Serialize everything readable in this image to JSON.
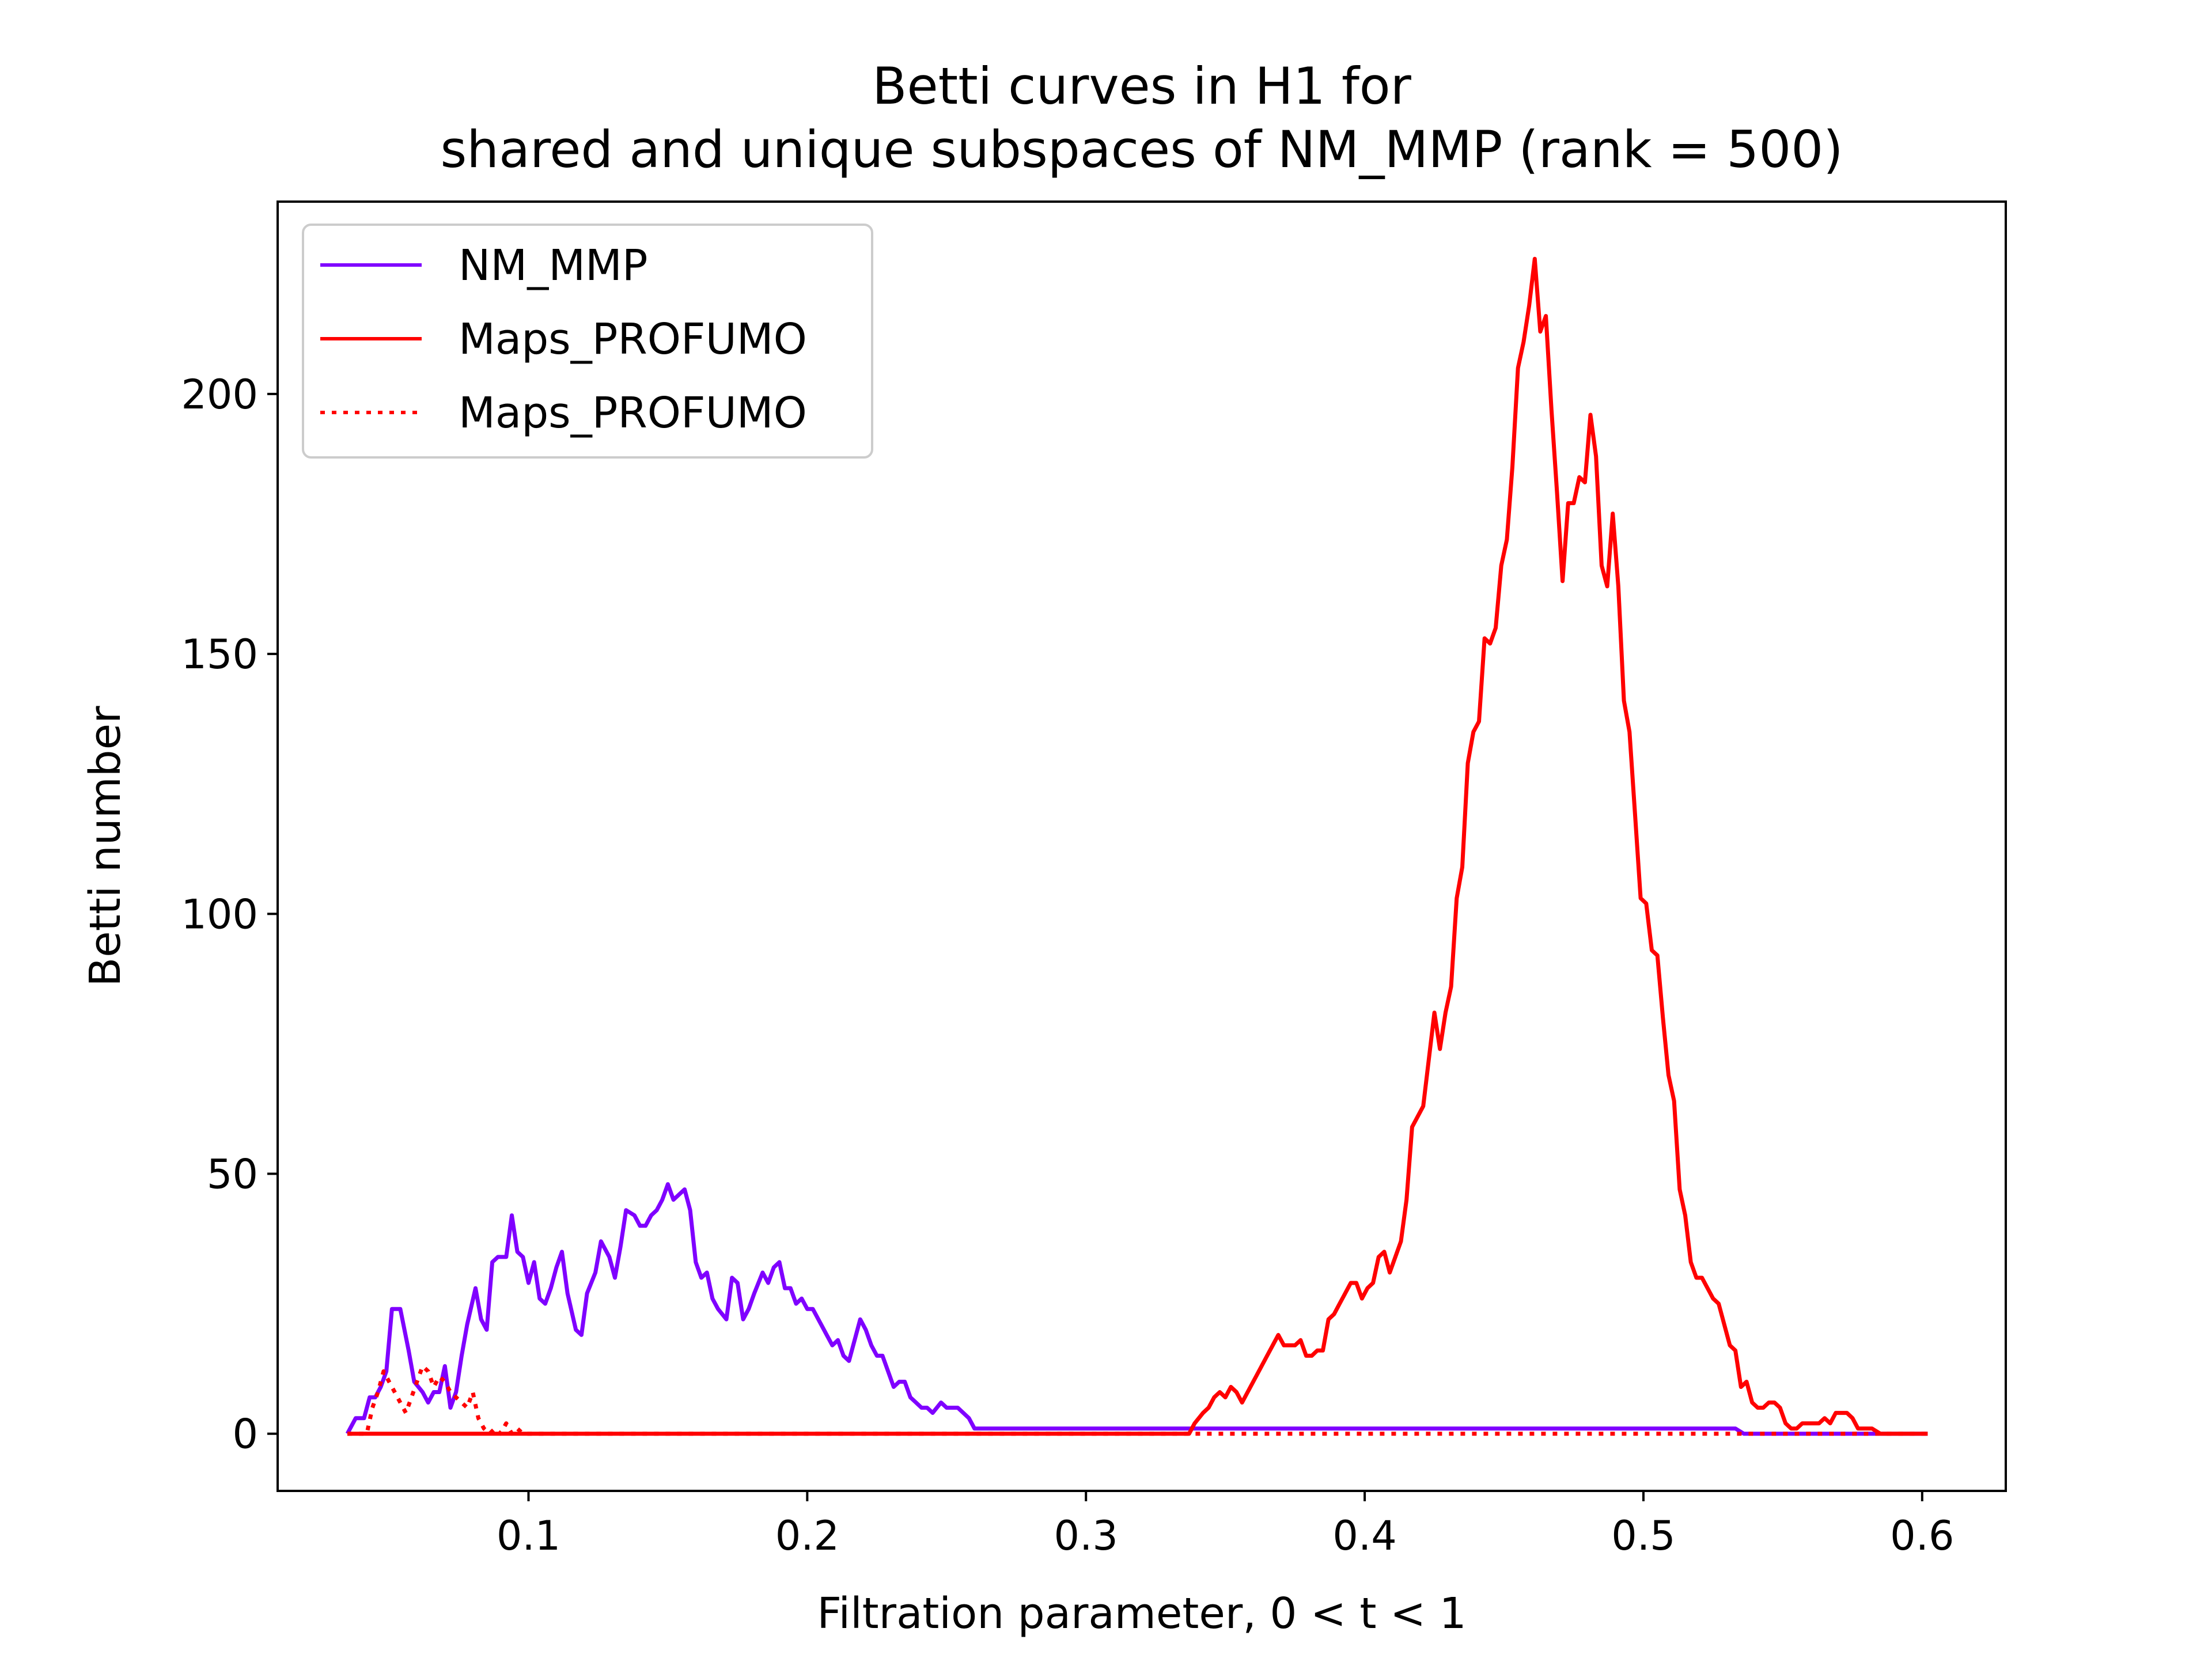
{
  "chart_data": {
    "type": "line",
    "title": "Betti curves in H1 for",
    "subtitle": "shared and unique subspaces of NM_MMP (rank = 500)",
    "xlabel": "Filtration parameter, 0 < t < 1",
    "ylabel": "Betti number",
    "xlim": [
      0.01,
      0.63
    ],
    "ylim": [
      -11,
      237
    ],
    "xticks": [
      0.1,
      0.2,
      0.3,
      0.4,
      0.5,
      0.6
    ],
    "xtick_labels": [
      "0.1",
      "0.2",
      "0.3",
      "0.4",
      "0.5",
      "0.6"
    ],
    "yticks": [
      0,
      50,
      100,
      150,
      200
    ],
    "ytick_labels": [
      "0",
      "50",
      "100",
      "150",
      "200"
    ],
    "grid": false,
    "legend_position": "upper left",
    "series": [
      {
        "name": "NM_MMP",
        "color": "#7f00ff",
        "style": "solid",
        "points": [
          [
            0.035,
            0
          ],
          [
            0.038,
            3
          ],
          [
            0.041,
            3
          ],
          [
            0.043,
            7
          ],
          [
            0.045,
            7
          ],
          [
            0.047,
            9
          ],
          [
            0.049,
            12
          ],
          [
            0.051,
            24
          ],
          [
            0.054,
            24
          ],
          [
            0.057,
            16
          ],
          [
            0.059,
            10
          ],
          [
            0.062,
            8
          ],
          [
            0.064,
            6
          ],
          [
            0.066,
            8
          ],
          [
            0.068,
            8
          ],
          [
            0.07,
            13
          ],
          [
            0.072,
            5
          ],
          [
            0.074,
            8
          ],
          [
            0.076,
            15
          ],
          [
            0.078,
            21
          ],
          [
            0.081,
            28
          ],
          [
            0.083,
            22
          ],
          [
            0.085,
            20
          ],
          [
            0.087,
            33
          ],
          [
            0.089,
            34
          ],
          [
            0.092,
            34
          ],
          [
            0.094,
            42
          ],
          [
            0.096,
            35
          ],
          [
            0.098,
            34
          ],
          [
            0.1,
            29
          ],
          [
            0.102,
            33
          ],
          [
            0.104,
            26
          ],
          [
            0.106,
            25
          ],
          [
            0.108,
            28
          ],
          [
            0.11,
            32
          ],
          [
            0.112,
            35
          ],
          [
            0.114,
            27
          ],
          [
            0.117,
            20
          ],
          [
            0.119,
            19
          ],
          [
            0.121,
            27
          ],
          [
            0.124,
            31
          ],
          [
            0.126,
            37
          ],
          [
            0.129,
            34
          ],
          [
            0.131,
            30
          ],
          [
            0.133,
            36
          ],
          [
            0.135,
            43
          ],
          [
            0.138,
            42
          ],
          [
            0.14,
            40
          ],
          [
            0.142,
            40
          ],
          [
            0.144,
            42
          ],
          [
            0.146,
            43
          ],
          [
            0.148,
            45
          ],
          [
            0.15,
            48
          ],
          [
            0.152,
            45
          ],
          [
            0.154,
            46
          ],
          [
            0.156,
            47
          ],
          [
            0.158,
            43
          ],
          [
            0.16,
            33
          ],
          [
            0.162,
            30
          ],
          [
            0.164,
            31
          ],
          [
            0.166,
            26
          ],
          [
            0.168,
            24
          ],
          [
            0.171,
            22
          ],
          [
            0.173,
            30
          ],
          [
            0.175,
            29
          ],
          [
            0.177,
            22
          ],
          [
            0.179,
            24
          ],
          [
            0.181,
            27
          ],
          [
            0.184,
            31
          ],
          [
            0.186,
            29
          ],
          [
            0.188,
            32
          ],
          [
            0.19,
            33
          ],
          [
            0.192,
            28
          ],
          [
            0.194,
            28
          ],
          [
            0.196,
            25
          ],
          [
            0.198,
            26
          ],
          [
            0.2,
            24
          ],
          [
            0.202,
            24
          ],
          [
            0.205,
            21
          ],
          [
            0.207,
            19
          ],
          [
            0.209,
            17
          ],
          [
            0.211,
            18
          ],
          [
            0.213,
            15
          ],
          [
            0.215,
            14
          ],
          [
            0.217,
            18
          ],
          [
            0.219,
            22
          ],
          [
            0.221,
            20
          ],
          [
            0.223,
            17
          ],
          [
            0.225,
            15
          ],
          [
            0.227,
            15
          ],
          [
            0.229,
            12
          ],
          [
            0.231,
            9
          ],
          [
            0.233,
            10
          ],
          [
            0.235,
            10
          ],
          [
            0.237,
            7
          ],
          [
            0.239,
            6
          ],
          [
            0.241,
            5
          ],
          [
            0.243,
            5
          ],
          [
            0.245,
            4
          ],
          [
            0.248,
            6
          ],
          [
            0.25,
            5
          ],
          [
            0.252,
            5
          ],
          [
            0.254,
            5
          ],
          [
            0.256,
            4
          ],
          [
            0.258,
            3
          ],
          [
            0.26,
            1
          ],
          [
            0.27,
            1
          ],
          [
            0.3,
            1
          ],
          [
            0.4,
            1
          ],
          [
            0.5,
            1
          ],
          [
            0.533,
            1
          ],
          [
            0.536,
            0
          ],
          [
            0.602,
            0
          ]
        ]
      },
      {
        "name": "Maps_PROFUMO",
        "color": "#ff0000",
        "style": "solid",
        "points": [
          [
            0.035,
            0
          ],
          [
            0.1,
            0
          ],
          [
            0.2,
            0
          ],
          [
            0.3,
            0
          ],
          [
            0.337,
            0
          ],
          [
            0.339,
            2
          ],
          [
            0.342,
            4
          ],
          [
            0.344,
            5
          ],
          [
            0.346,
            7
          ],
          [
            0.348,
            8
          ],
          [
            0.35,
            7
          ],
          [
            0.352,
            9
          ],
          [
            0.354,
            8
          ],
          [
            0.356,
            6
          ],
          [
            0.358,
            8
          ],
          [
            0.361,
            11
          ],
          [
            0.363,
            13
          ],
          [
            0.365,
            15
          ],
          [
            0.367,
            17
          ],
          [
            0.369,
            19
          ],
          [
            0.371,
            17
          ],
          [
            0.373,
            17
          ],
          [
            0.375,
            17
          ],
          [
            0.377,
            18
          ],
          [
            0.379,
            15
          ],
          [
            0.381,
            15
          ],
          [
            0.383,
            16
          ],
          [
            0.385,
            16
          ],
          [
            0.387,
            22
          ],
          [
            0.389,
            23
          ],
          [
            0.391,
            25
          ],
          [
            0.393,
            27
          ],
          [
            0.395,
            29
          ],
          [
            0.397,
            29
          ],
          [
            0.399,
            26
          ],
          [
            0.401,
            28
          ],
          [
            0.403,
            29
          ],
          [
            0.405,
            34
          ],
          [
            0.407,
            35
          ],
          [
            0.409,
            31
          ],
          [
            0.411,
            34
          ],
          [
            0.413,
            37
          ],
          [
            0.415,
            45
          ],
          [
            0.417,
            59
          ],
          [
            0.419,
            61
          ],
          [
            0.421,
            63
          ],
          [
            0.423,
            72
          ],
          [
            0.425,
            81
          ],
          [
            0.427,
            74
          ],
          [
            0.429,
            81
          ],
          [
            0.431,
            86
          ],
          [
            0.433,
            103
          ],
          [
            0.435,
            109
          ],
          [
            0.437,
            129
          ],
          [
            0.439,
            135
          ],
          [
            0.441,
            137
          ],
          [
            0.443,
            153
          ],
          [
            0.445,
            152
          ],
          [
            0.447,
            155
          ],
          [
            0.449,
            167
          ],
          [
            0.451,
            172
          ],
          [
            0.453,
            186
          ],
          [
            0.455,
            205
          ],
          [
            0.457,
            210
          ],
          [
            0.459,
            217
          ],
          [
            0.461,
            226
          ],
          [
            0.463,
            212
          ],
          [
            0.465,
            215
          ],
          [
            0.467,
            197
          ],
          [
            0.469,
            181
          ],
          [
            0.471,
            164
          ],
          [
            0.473,
            179
          ],
          [
            0.475,
            179
          ],
          [
            0.477,
            184
          ],
          [
            0.479,
            183
          ],
          [
            0.481,
            196
          ],
          [
            0.483,
            188
          ],
          [
            0.485,
            167
          ],
          [
            0.487,
            163
          ],
          [
            0.489,
            177
          ],
          [
            0.491,
            163
          ],
          [
            0.493,
            141
          ],
          [
            0.495,
            135
          ],
          [
            0.497,
            119
          ],
          [
            0.499,
            103
          ],
          [
            0.501,
            102
          ],
          [
            0.503,
            93
          ],
          [
            0.505,
            92
          ],
          [
            0.507,
            80
          ],
          [
            0.509,
            69
          ],
          [
            0.511,
            64
          ],
          [
            0.513,
            47
          ],
          [
            0.515,
            42
          ],
          [
            0.517,
            33
          ],
          [
            0.519,
            30
          ],
          [
            0.521,
            30
          ],
          [
            0.523,
            28
          ],
          [
            0.525,
            26
          ],
          [
            0.527,
            25
          ],
          [
            0.529,
            21
          ],
          [
            0.531,
            17
          ],
          [
            0.533,
            16
          ],
          [
            0.535,
            9
          ],
          [
            0.537,
            10
          ],
          [
            0.539,
            6
          ],
          [
            0.541,
            5
          ],
          [
            0.543,
            5
          ],
          [
            0.545,
            6
          ],
          [
            0.547,
            6
          ],
          [
            0.549,
            5
          ],
          [
            0.551,
            2
          ],
          [
            0.553,
            1
          ],
          [
            0.555,
            1
          ],
          [
            0.557,
            2
          ],
          [
            0.559,
            2
          ],
          [
            0.561,
            2
          ],
          [
            0.563,
            2
          ],
          [
            0.565,
            3
          ],
          [
            0.567,
            2
          ],
          [
            0.569,
            4
          ],
          [
            0.571,
            4
          ],
          [
            0.573,
            4
          ],
          [
            0.575,
            3
          ],
          [
            0.577,
            1
          ],
          [
            0.579,
            1
          ],
          [
            0.582,
            1
          ],
          [
            0.585,
            0
          ],
          [
            0.602,
            0
          ]
        ]
      },
      {
        "name": "Maps_PROFUMO",
        "color": "#ff0000",
        "style": "dotted",
        "points": [
          [
            0.035,
            0
          ],
          [
            0.042,
            0
          ],
          [
            0.044,
            5
          ],
          [
            0.046,
            8
          ],
          [
            0.048,
            12
          ],
          [
            0.05,
            10
          ],
          [
            0.052,
            8
          ],
          [
            0.054,
            6
          ],
          [
            0.056,
            4
          ],
          [
            0.058,
            7
          ],
          [
            0.06,
            10
          ],
          [
            0.062,
            13
          ],
          [
            0.064,
            12
          ],
          [
            0.066,
            9
          ],
          [
            0.068,
            11
          ],
          [
            0.07,
            10
          ],
          [
            0.072,
            8
          ],
          [
            0.074,
            7
          ],
          [
            0.076,
            6
          ],
          [
            0.078,
            5
          ],
          [
            0.08,
            8
          ],
          [
            0.082,
            3
          ],
          [
            0.084,
            1
          ],
          [
            0.086,
            0
          ],
          [
            0.088,
            1
          ],
          [
            0.09,
            0
          ],
          [
            0.092,
            2
          ],
          [
            0.094,
            0
          ],
          [
            0.096,
            1
          ],
          [
            0.098,
            0
          ],
          [
            0.1,
            0
          ],
          [
            0.2,
            0
          ],
          [
            0.3,
            0
          ],
          [
            0.4,
            0
          ],
          [
            0.5,
            0
          ],
          [
            0.602,
            0
          ]
        ]
      }
    ]
  }
}
